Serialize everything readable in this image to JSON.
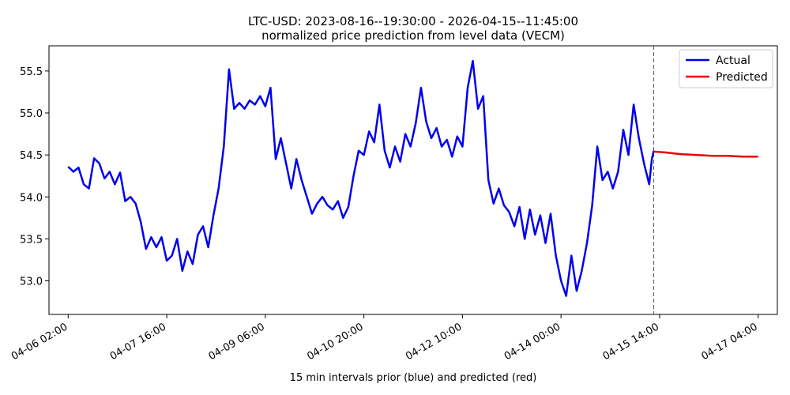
{
  "chart_data": {
    "type": "line",
    "title": "LTC-USD: 2023-08-16--19:30:00 - 2026-04-15--11:45:00",
    "subtitle": "normalized price prediction from level data (VECM)",
    "xlabel": "15 min intervals prior (blue) and predicted (red)",
    "ylabel": "",
    "x_ticks": [
      "04-06 02:00",
      "04-07 16:00",
      "04-09 06:00",
      "04-10 20:00",
      "04-12 10:00",
      "04-14 00:00",
      "04-15 14:00",
      "04-17 04:00"
    ],
    "y_ticks": [
      "53.0",
      "53.5",
      "54.0",
      "54.5",
      "55.0",
      "55.5"
    ],
    "ylim": [
      52.6,
      55.8
    ],
    "xlim": [
      "04-05 18:36",
      "04-17 11:24"
    ],
    "grid": false,
    "legend_position": "top-right",
    "divider_at": "04-15 11:45",
    "series": [
      {
        "name": "Actual",
        "color": "#0000ee",
        "points": [
          [
            "04-06 02:00",
            54.36
          ],
          [
            "04-06 04:00",
            54.3
          ],
          [
            "04-06 06:00",
            54.35
          ],
          [
            "04-06 08:00",
            54.15
          ],
          [
            "04-06 10:00",
            54.1
          ],
          [
            "04-06 12:00",
            54.46
          ],
          [
            "04-06 14:00",
            54.4
          ],
          [
            "04-06 16:00",
            54.22
          ],
          [
            "04-06 18:00",
            54.3
          ],
          [
            "04-06 20:00",
            54.15
          ],
          [
            "04-06 22:00",
            54.29
          ],
          [
            "04-07 00:00",
            53.95
          ],
          [
            "04-07 02:00",
            54.0
          ],
          [
            "04-07 04:00",
            53.92
          ],
          [
            "04-07 06:00",
            53.7
          ],
          [
            "04-07 08:00",
            53.38
          ],
          [
            "04-07 10:00",
            53.52
          ],
          [
            "04-07 12:00",
            53.4
          ],
          [
            "04-07 14:00",
            53.52
          ],
          [
            "04-07 16:00",
            53.24
          ],
          [
            "04-07 18:00",
            53.3
          ],
          [
            "04-07 20:00",
            53.5
          ],
          [
            "04-07 22:00",
            53.12
          ],
          [
            "04-08 00:00",
            53.35
          ],
          [
            "04-08 02:00",
            53.2
          ],
          [
            "04-08 04:00",
            53.55
          ],
          [
            "04-08 06:00",
            53.65
          ],
          [
            "04-08 08:00",
            53.4
          ],
          [
            "04-08 10:00",
            53.78
          ],
          [
            "04-08 12:00",
            54.1
          ],
          [
            "04-08 14:00",
            54.6
          ],
          [
            "04-08 16:00",
            55.52
          ],
          [
            "04-08 18:00",
            55.05
          ],
          [
            "04-08 20:00",
            55.12
          ],
          [
            "04-08 22:00",
            55.05
          ],
          [
            "04-09 00:00",
            55.15
          ],
          [
            "04-09 02:00",
            55.1
          ],
          [
            "04-09 04:00",
            55.2
          ],
          [
            "04-09 06:00",
            55.08
          ],
          [
            "04-09 08:00",
            55.3
          ],
          [
            "04-09 10:00",
            54.45
          ],
          [
            "04-09 12:00",
            54.7
          ],
          [
            "04-09 14:00",
            54.4
          ],
          [
            "04-09 16:00",
            54.1
          ],
          [
            "04-09 18:00",
            54.45
          ],
          [
            "04-09 20:00",
            54.2
          ],
          [
            "04-09 22:00",
            54.0
          ],
          [
            "04-10 00:00",
            53.8
          ],
          [
            "04-10 02:00",
            53.92
          ],
          [
            "04-10 04:00",
            54.0
          ],
          [
            "04-10 06:00",
            53.9
          ],
          [
            "04-10 08:00",
            53.85
          ],
          [
            "04-10 10:00",
            53.95
          ],
          [
            "04-10 12:00",
            53.75
          ],
          [
            "04-10 14:00",
            53.88
          ],
          [
            "04-10 16:00",
            54.25
          ],
          [
            "04-10 18:00",
            54.55
          ],
          [
            "04-10 20:00",
            54.5
          ],
          [
            "04-10 22:00",
            54.78
          ],
          [
            "04-11 00:00",
            54.65
          ],
          [
            "04-11 02:00",
            55.1
          ],
          [
            "04-11 04:00",
            54.55
          ],
          [
            "04-11 06:00",
            54.35
          ],
          [
            "04-11 08:00",
            54.6
          ],
          [
            "04-11 10:00",
            54.42
          ],
          [
            "04-11 12:00",
            54.75
          ],
          [
            "04-11 14:00",
            54.6
          ],
          [
            "04-11 16:00",
            54.88
          ],
          [
            "04-11 18:00",
            55.3
          ],
          [
            "04-11 20:00",
            54.9
          ],
          [
            "04-11 22:00",
            54.7
          ],
          [
            "04-12 00:00",
            54.82
          ],
          [
            "04-12 02:00",
            54.6
          ],
          [
            "04-12 04:00",
            54.68
          ],
          [
            "04-12 06:00",
            54.48
          ],
          [
            "04-12 08:00",
            54.72
          ],
          [
            "04-12 10:00",
            54.6
          ],
          [
            "04-12 12:00",
            55.3
          ],
          [
            "04-12 14:00",
            55.62
          ],
          [
            "04-12 16:00",
            55.05
          ],
          [
            "04-12 18:00",
            55.2
          ],
          [
            "04-12 20:00",
            54.2
          ],
          [
            "04-12 22:00",
            53.92
          ],
          [
            "04-13 00:00",
            54.1
          ],
          [
            "04-13 02:00",
            53.9
          ],
          [
            "04-13 04:00",
            53.82
          ],
          [
            "04-13 06:00",
            53.65
          ],
          [
            "04-13 08:00",
            53.88
          ],
          [
            "04-13 10:00",
            53.5
          ],
          [
            "04-13 12:00",
            53.85
          ],
          [
            "04-13 14:00",
            53.55
          ],
          [
            "04-13 16:00",
            53.78
          ],
          [
            "04-13 18:00",
            53.45
          ],
          [
            "04-13 20:00",
            53.8
          ],
          [
            "04-13 22:00",
            53.3
          ],
          [
            "04-14 00:00",
            53.0
          ],
          [
            "04-14 02:00",
            52.82
          ],
          [
            "04-14 04:00",
            53.3
          ],
          [
            "04-14 06:00",
            52.88
          ],
          [
            "04-14 08:00",
            53.12
          ],
          [
            "04-14 10:00",
            53.45
          ],
          [
            "04-14 12:00",
            53.9
          ],
          [
            "04-14 14:00",
            54.6
          ],
          [
            "04-14 16:00",
            54.2
          ],
          [
            "04-14 18:00",
            54.3
          ],
          [
            "04-14 20:00",
            54.1
          ],
          [
            "04-14 22:00",
            54.3
          ],
          [
            "04-15 00:00",
            54.8
          ],
          [
            "04-15 02:00",
            54.5
          ],
          [
            "04-15 04:00",
            55.1
          ],
          [
            "04-15 06:00",
            54.7
          ],
          [
            "04-15 08:00",
            54.4
          ],
          [
            "04-15 10:00",
            54.15
          ],
          [
            "04-15 11:00",
            54.45
          ],
          [
            "04-15 11:45",
            54.55
          ]
        ]
      },
      {
        "name": "Predicted",
        "color": "#ee0000",
        "points": [
          [
            "04-15 11:45",
            54.54
          ],
          [
            "04-15 16:00",
            54.53
          ],
          [
            "04-15 22:00",
            54.51
          ],
          [
            "04-16 04:00",
            54.5
          ],
          [
            "04-16 10:00",
            54.49
          ],
          [
            "04-16 16:00",
            54.49
          ],
          [
            "04-16 22:00",
            54.48
          ],
          [
            "04-17 04:00",
            54.48
          ]
        ]
      }
    ]
  }
}
